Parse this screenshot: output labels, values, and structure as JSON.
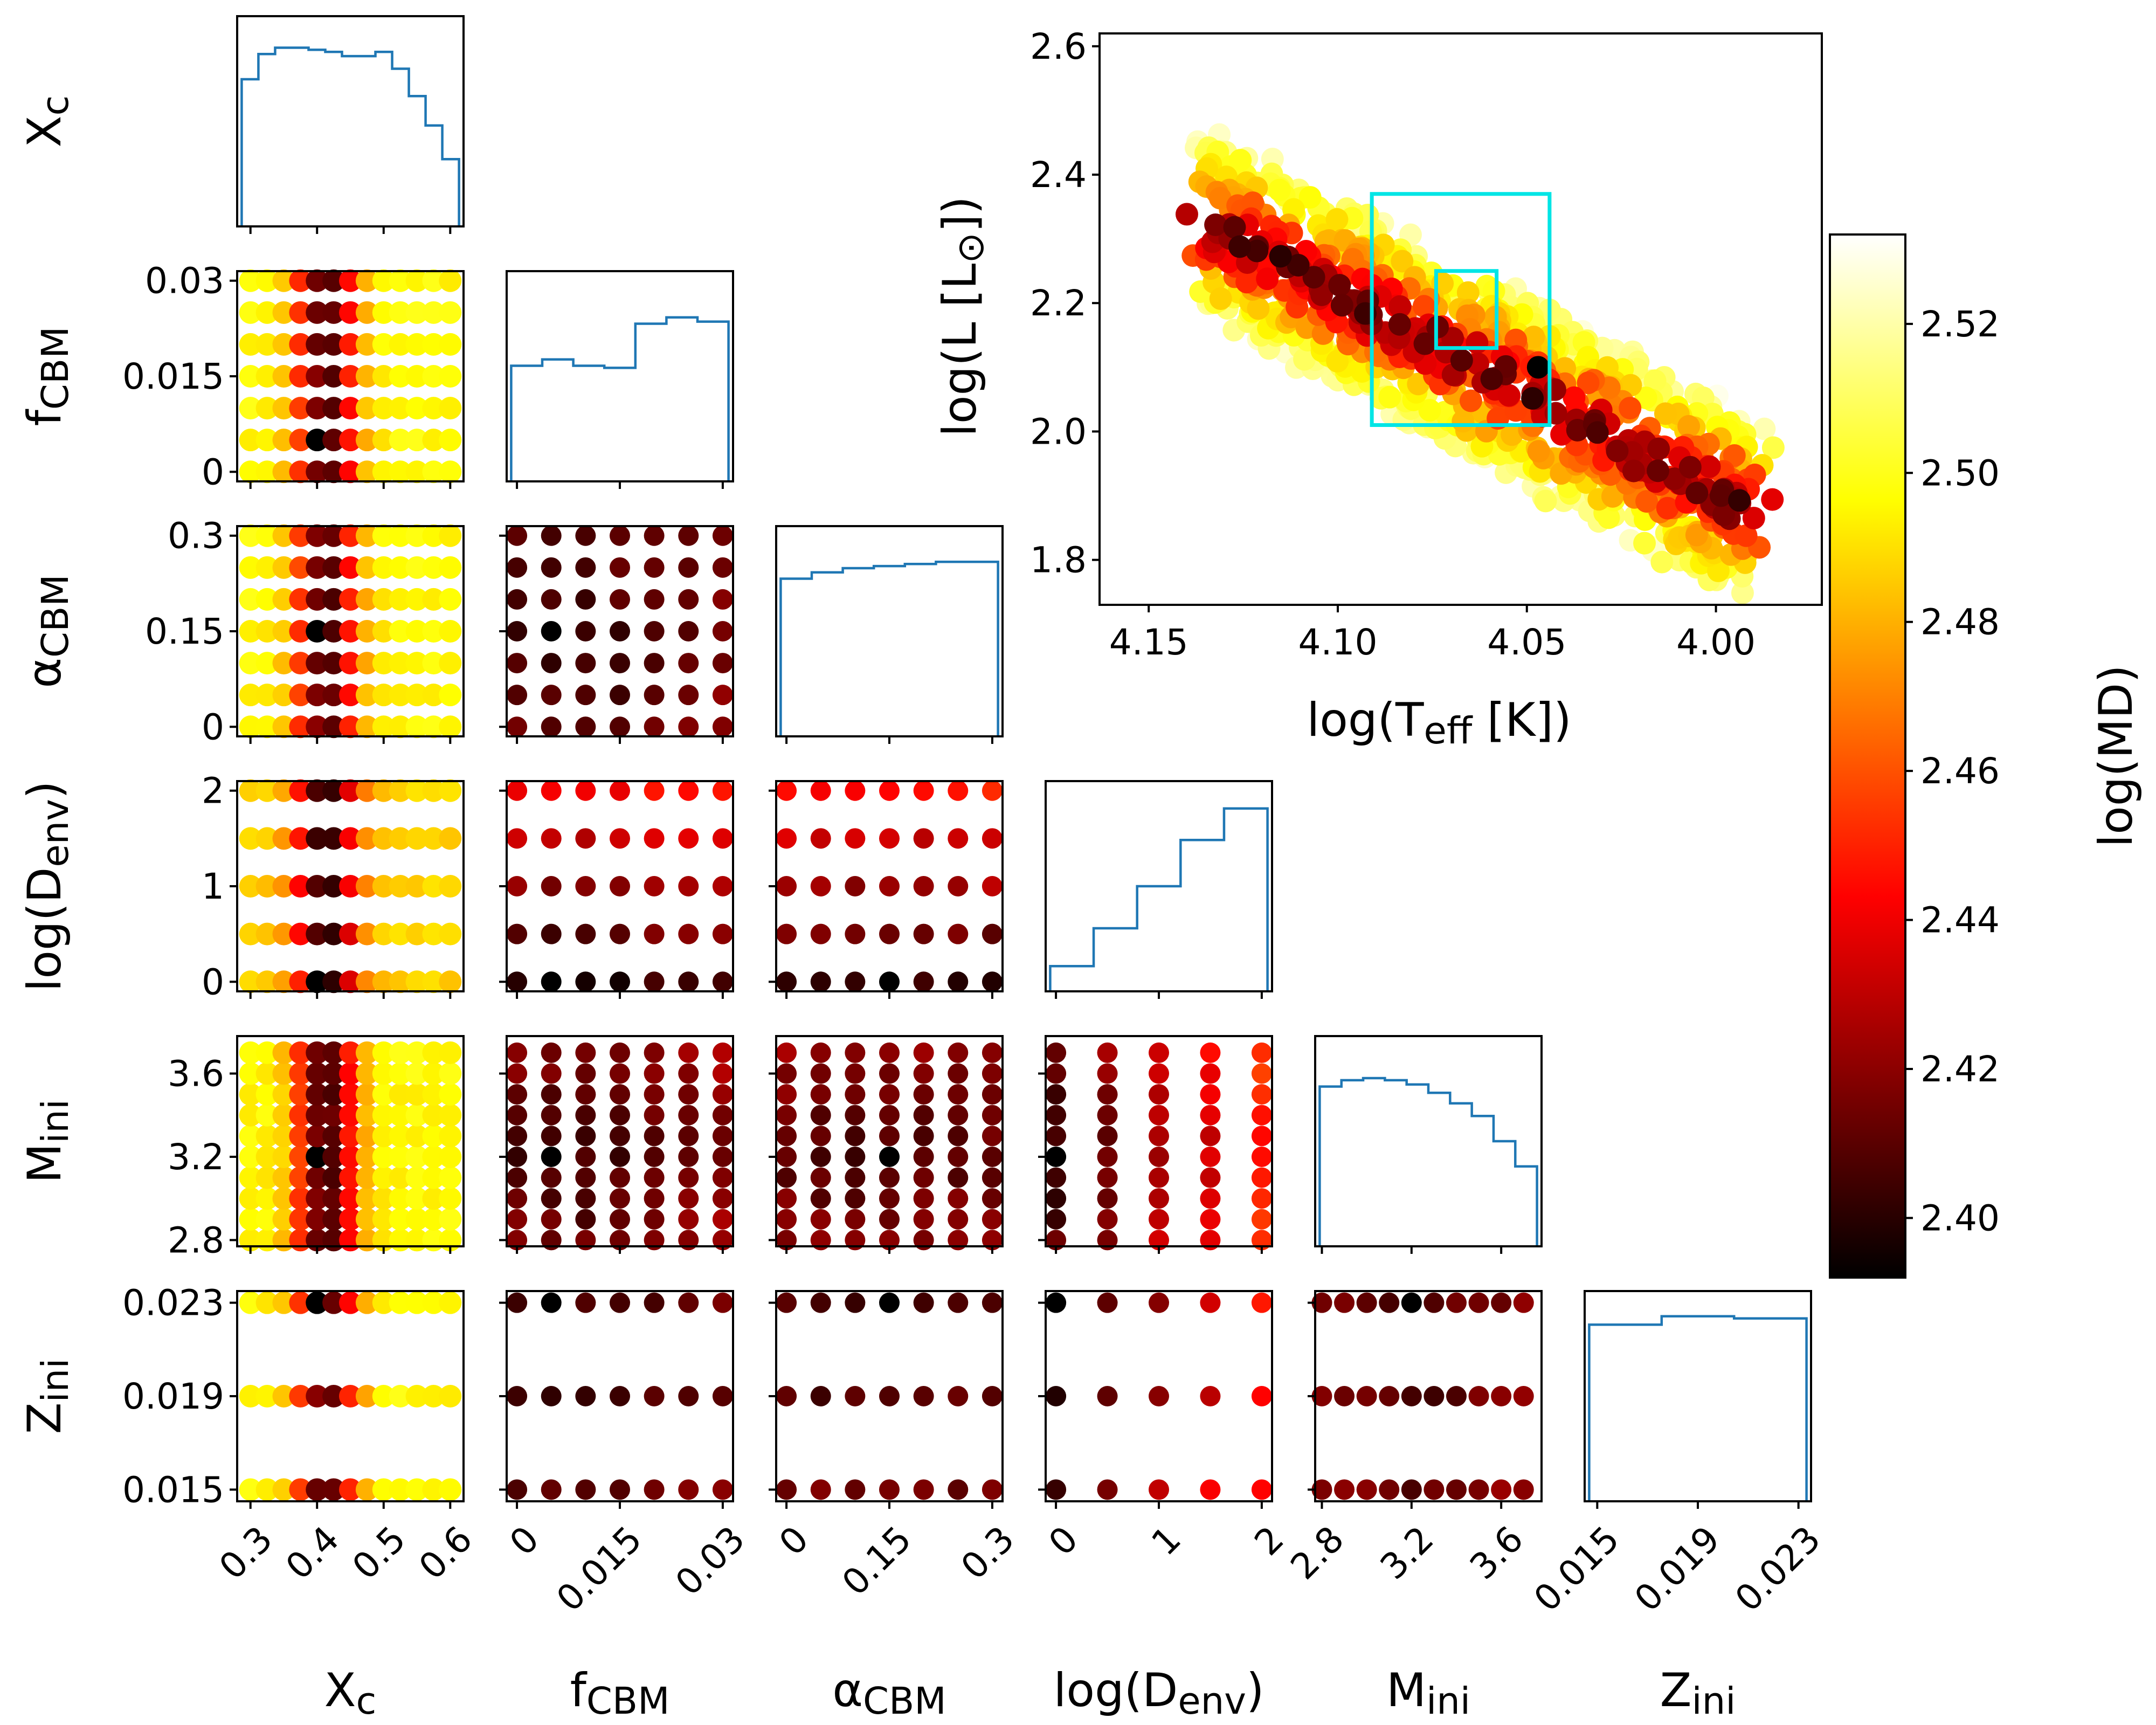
{
  "figure": {
    "type": "corner-plot",
    "colorbar": {
      "label": "log(MD)",
      "min": 2.392,
      "max": 2.532,
      "ticks": [
        "2.40",
        "2.42",
        "2.44",
        "2.46",
        "2.48",
        "2.50",
        "2.52"
      ],
      "tick_values": [
        2.4,
        2.42,
        2.44,
        2.46,
        2.48,
        2.5,
        2.52
      ],
      "colormap": "hot"
    },
    "accent_colors": {
      "histogram": "#1f77b4",
      "error_box": "#00e5e5"
    }
  },
  "chart_data": [
    {
      "type": "corner",
      "parameters": [
        {
          "id": "Xc",
          "label": "X",
          "sub": "c",
          "grid": [
            0.3,
            0.325,
            0.35,
            0.375,
            0.4,
            0.425,
            0.45,
            0.475,
            0.5,
            0.525,
            0.55,
            0.575,
            0.6
          ],
          "range": [
            0.28,
            0.62
          ],
          "ticks": [
            0.3,
            0.4,
            0.5,
            0.6
          ],
          "tick_labels": [
            "0.3",
            "0.4",
            "0.5",
            "0.6"
          ],
          "best": 0.4
        },
        {
          "id": "fCBM",
          "label": "f",
          "sub": "CBM",
          "grid": [
            0,
            0.005,
            0.01,
            0.015,
            0.02,
            0.025,
            0.03
          ],
          "range": [
            -0.0015,
            0.0315
          ],
          "ticks": [
            0,
            0.015,
            0.03
          ],
          "tick_labels": [
            "0",
            "0.015",
            "0.03"
          ],
          "best": 0.005
        },
        {
          "id": "aCBM",
          "label": "α",
          "sub": "CBM",
          "grid": [
            0,
            0.05,
            0.1,
            0.15,
            0.2,
            0.25,
            0.3
          ],
          "range": [
            -0.015,
            0.315
          ],
          "ticks": [
            0,
            0.15,
            0.3
          ],
          "tick_labels": [
            "0",
            "0.15",
            "0.3"
          ],
          "best": 0.15
        },
        {
          "id": "Denv",
          "label": "log(D",
          "sub": "env",
          "suffix": ")",
          "grid": [
            0,
            0.5,
            1,
            1.5,
            2
          ],
          "range": [
            -0.1,
            2.1
          ],
          "ticks": [
            0,
            1,
            2
          ],
          "tick_labels": [
            "0",
            "1",
            "2"
          ],
          "best": 0
        },
        {
          "id": "Mini",
          "label": "M",
          "sub": "ini",
          "grid": [
            2.8,
            2.9,
            3.0,
            3.1,
            3.2,
            3.3,
            3.4,
            3.5,
            3.6,
            3.7
          ],
          "range": [
            2.77,
            3.78
          ],
          "ticks": [
            2.8,
            3.2,
            3.6
          ],
          "tick_labels": [
            "2.8",
            "3.2",
            "3.6"
          ],
          "best": 3.2
        },
        {
          "id": "Zini",
          "label": "Z",
          "sub": "ini",
          "grid": [
            0.015,
            0.019,
            0.023
          ],
          "range": [
            0.0145,
            0.0235
          ],
          "ticks": [
            0.015,
            0.019,
            0.023
          ],
          "tick_labels": [
            "0.015",
            "0.019",
            "0.023"
          ],
          "best": 0.023
        }
      ],
      "histograms": {
        "Xc": [
          0.7,
          0.82,
          0.85,
          0.85,
          0.84,
          0.83,
          0.81,
          0.81,
          0.83,
          0.75,
          0.62,
          0.48,
          0.32
        ],
        "fCBM": [
          0.55,
          0.58,
          0.55,
          0.54,
          0.75,
          0.78,
          0.76
        ],
        "aCBM": [
          0.75,
          0.78,
          0.8,
          0.81,
          0.82,
          0.83,
          0.83
        ],
        "Denv": [
          0.12,
          0.3,
          0.5,
          0.72,
          0.87
        ],
        "Mini": [
          0.76,
          0.79,
          0.8,
          0.79,
          0.77,
          0.73,
          0.68,
          0.62,
          0.5,
          0.38
        ],
        "Zini": [
          0.84,
          0.88,
          0.87
        ]
      }
    },
    {
      "type": "scatter",
      "title": "",
      "xlabel": "log(T",
      "xlabel_sub": "eff",
      "xlabel_suffix": " [K])",
      "ylabel": "log(L [L",
      "ylabel_sub": "⊙",
      "ylabel_suffix": "])",
      "xlim": [
        4.163,
        3.972
      ],
      "ylim": [
        1.73,
        2.62
      ],
      "x_ticks": [
        4.15,
        4.1,
        4.05,
        4.0
      ],
      "x_tick_labels": [
        "4.15",
        "4.10",
        "4.05",
        "4.00"
      ],
      "y_ticks": [
        1.8,
        2.0,
        2.2,
        2.4,
        2.6
      ],
      "y_tick_labels": [
        "1.8",
        "2.0",
        "2.2",
        "2.4",
        "2.6"
      ],
      "band": {
        "x_start": 4.135,
        "x_end": 3.99,
        "l_start": 2.33,
        "l_end": 1.87,
        "half_width": 0.14
      },
      "best_model": {
        "logTeff": 4.047,
        "logL": 2.1
      },
      "error_boxes": [
        {
          "x0": 4.091,
          "x1": 4.044,
          "y0": 2.01,
          "y1": 2.37
        },
        {
          "x0": 4.074,
          "x1": 4.058,
          "y0": 2.13,
          "y1": 2.25
        }
      ]
    }
  ]
}
